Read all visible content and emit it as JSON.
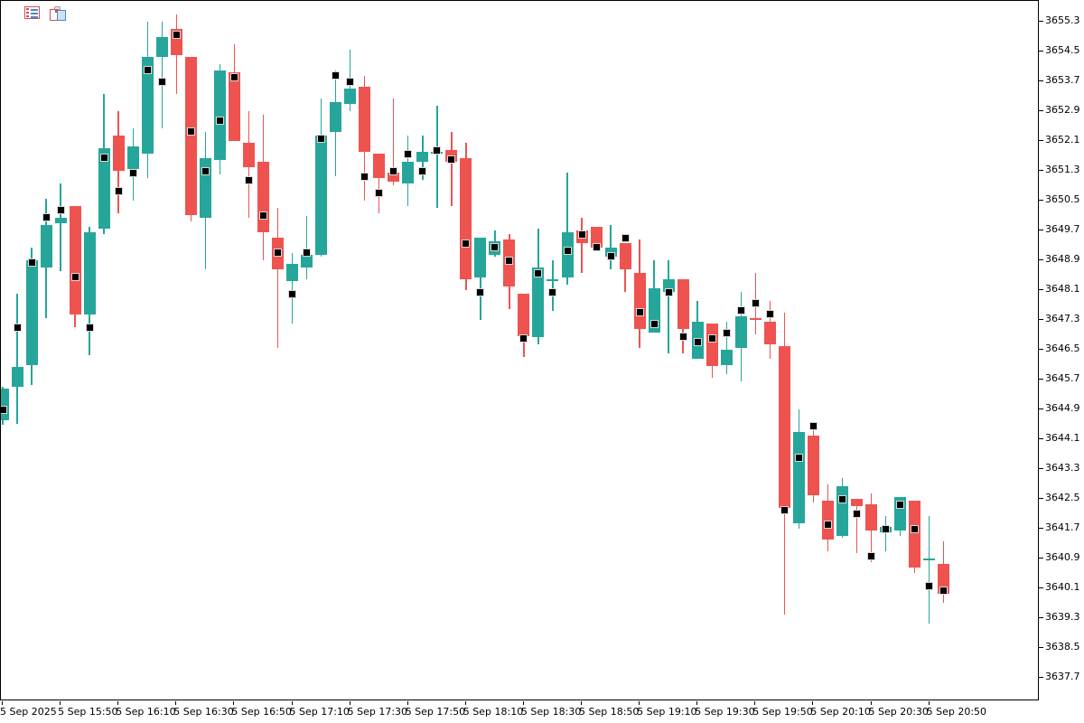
{
  "toolbar": {
    "icons": [
      {
        "name": "list-icon"
      },
      {
        "name": "pages-icon"
      }
    ]
  },
  "chart_data": {
    "type": "candlestick",
    "title": "",
    "colors": {
      "up": "#26a69a",
      "down": "#ef5350",
      "marker": "#000000",
      "axis": "#000000",
      "background": "#ffffff"
    },
    "grid": false,
    "legend": null,
    "y_axis": {
      "side": "right",
      "min": 3637.7,
      "max": 3655.3,
      "step": 0.8,
      "tick_labels": [
        "3655.3",
        "3654.5",
        "3653.7",
        "3652.9",
        "3652.1",
        "3651.3",
        "3650.5",
        "3649.7",
        "3648.9",
        "3648.1",
        "3647.3",
        "3646.5",
        "3645.7",
        "3644.9",
        "3644.1",
        "3643.3",
        "3642.5",
        "3641.7",
        "3640.9",
        "3640.1",
        "3639.3",
        "3638.5",
        "3637.7"
      ]
    },
    "x_axis": {
      "tick_labels": [
        "5 Sep 2025",
        "5 Sep 15:50",
        "5 Sep 16:10",
        "5 Sep 16:30",
        "5 Sep 16:50",
        "5 Sep 17:10",
        "5 Sep 17:30",
        "5 Sep 17:50",
        "5 Sep 18:10",
        "5 Sep 18:30",
        "5 Sep 18:50",
        "5 Sep 19:10",
        "5 Sep 19:30",
        "5 Sep 19:50",
        "5 Sep 20:10",
        "5 Sep 20:30",
        "5 Sep 20:50"
      ],
      "candles_per_tick": 4
    },
    "candles_ohlc_marker": [
      [
        3644.6,
        3645.5,
        3644.5,
        3645.45,
        3644.9
      ],
      [
        3645.5,
        3648.0,
        3644.5,
        3646.05,
        3647.1
      ],
      [
        3646.1,
        3649.25,
        3645.55,
        3648.9,
        3648.85
      ],
      [
        3648.7,
        3650.55,
        3647.35,
        3649.85,
        3650.05
      ],
      [
        3649.9,
        3650.95,
        3648.6,
        3650.05,
        3650.25
      ],
      [
        3650.35,
        3650.35,
        3647.1,
        3647.45,
        3648.45
      ],
      [
        3647.45,
        3649.8,
        3646.35,
        3649.65,
        3647.1
      ],
      [
        3649.75,
        3653.35,
        3649.6,
        3651.9,
        3651.65
      ],
      [
        3652.25,
        3652.9,
        3650.15,
        3651.3,
        3650.75
      ],
      [
        3651.35,
        3652.45,
        3650.5,
        3651.95,
        3651.25
      ],
      [
        3651.75,
        3655.3,
        3651.1,
        3654.35,
        3654.0
      ],
      [
        3654.35,
        3655.3,
        3652.45,
        3654.9,
        3653.7
      ],
      [
        3655.1,
        3655.5,
        3653.35,
        3654.4,
        3654.95
      ],
      [
        3654.35,
        3654.35,
        3649.95,
        3650.1,
        3652.35
      ],
      [
        3650.05,
        3652.35,
        3648.65,
        3651.65,
        3651.3
      ],
      [
        3651.6,
        3654.15,
        3651.2,
        3654.0,
        3652.65
      ],
      [
        3653.95,
        3654.7,
        3652.1,
        3652.1,
        3653.8
      ],
      [
        3652.05,
        3652.9,
        3650.05,
        3651.4,
        3651.05
      ],
      [
        3651.55,
        3652.8,
        3648.9,
        3649.65,
        3650.1
      ],
      [
        3649.5,
        3650.3,
        3646.55,
        3648.65,
        3649.1
      ],
      [
        3648.35,
        3649.1,
        3647.2,
        3648.8,
        3648.0
      ],
      [
        3648.7,
        3650.1,
        3648.4,
        3649.05,
        3649.1
      ],
      [
        3649.05,
        3653.25,
        3649.0,
        3652.25,
        3652.15
      ],
      [
        3652.35,
        3654.0,
        3651.15,
        3653.15,
        3653.85
      ],
      [
        3653.1,
        3654.55,
        3652.9,
        3653.5,
        3653.7
      ],
      [
        3653.55,
        3653.85,
        3650.5,
        3651.8,
        3651.15
      ],
      [
        3651.75,
        3651.75,
        3650.15,
        3651.1,
        3650.7
      ],
      [
        3651.25,
        3653.25,
        3650.9,
        3651.0,
        3651.3
      ],
      [
        3650.95,
        3652.25,
        3650.35,
        3651.55,
        3651.75
      ],
      [
        3651.55,
        3652.25,
        3651.05,
        3651.8,
        3651.3
      ],
      [
        3651.75,
        3653.05,
        3650.3,
        3651.8,
        3651.85
      ],
      [
        3651.85,
        3652.35,
        3650.35,
        3651.55,
        3651.6
      ],
      [
        3651.65,
        3652.05,
        3648.1,
        3648.4,
        3649.35
      ],
      [
        3648.45,
        3649.5,
        3647.3,
        3649.5,
        3648.05
      ],
      [
        3649.05,
        3649.7,
        3649.0,
        3649.4,
        3649.25
      ],
      [
        3649.45,
        3649.6,
        3647.6,
        3648.2,
        3648.9
      ],
      [
        3648.0,
        3648.0,
        3646.3,
        3646.85,
        3646.8
      ],
      [
        3646.85,
        3649.75,
        3646.65,
        3648.7,
        3648.55
      ],
      [
        3648.35,
        3648.9,
        3647.55,
        3648.4,
        3648.05
      ],
      [
        3648.45,
        3651.25,
        3648.25,
        3649.65,
        3649.15
      ],
      [
        3649.7,
        3650.05,
        3648.55,
        3649.35,
        3649.6
      ],
      [
        3649.8,
        3649.8,
        3649.2,
        3649.25,
        3649.25
      ],
      [
        3649.0,
        3649.85,
        3648.65,
        3649.25,
        3649.0
      ],
      [
        3649.35,
        3649.35,
        3648.05,
        3648.65,
        3649.5
      ],
      [
        3648.55,
        3649.45,
        3646.55,
        3647.05,
        3647.5
      ],
      [
        3646.95,
        3648.9,
        3646.95,
        3648.15,
        3647.2
      ],
      [
        3648.05,
        3648.9,
        3646.4,
        3648.4,
        3648.05
      ],
      [
        3648.4,
        3648.4,
        3646.4,
        3647.05,
        3646.85
      ],
      [
        3646.25,
        3647.8,
        3646.25,
        3647.25,
        3646.7
      ],
      [
        3647.2,
        3647.2,
        3645.75,
        3646.05,
        3646.8
      ],
      [
        3646.1,
        3647.25,
        3645.85,
        3646.5,
        3646.95
      ],
      [
        3646.55,
        3648.05,
        3645.65,
        3647.4,
        3647.55
      ],
      [
        3647.35,
        3648.55,
        3646.9,
        3647.3,
        3647.75
      ],
      [
        3647.25,
        3647.8,
        3646.25,
        3646.65,
        3647.45
      ],
      [
        3646.6,
        3647.5,
        3639.4,
        3642.25,
        3642.2
      ],
      [
        3641.85,
        3644.9,
        3641.7,
        3644.3,
        3643.6
      ],
      [
        3644.2,
        3644.5,
        3642.4,
        3642.6,
        3644.45
      ],
      [
        3642.45,
        3642.9,
        3641.1,
        3641.4,
        3641.8
      ],
      [
        3641.5,
        3643.05,
        3641.45,
        3642.85,
        3642.5
      ],
      [
        3642.5,
        3642.5,
        3641.05,
        3642.3,
        3642.1
      ],
      [
        3642.35,
        3642.65,
        3640.8,
        3641.65,
        3640.95
      ],
      [
        3641.6,
        3642.05,
        3641.1,
        3641.75,
        3641.7
      ],
      [
        3641.65,
        3642.55,
        3641.5,
        3642.55,
        3642.35
      ],
      [
        3642.45,
        3642.45,
        3640.5,
        3640.65,
        3641.7
      ],
      [
        3640.85,
        3642.05,
        3639.15,
        3640.9,
        3640.15
      ],
      [
        3640.75,
        3641.35,
        3639.7,
        3639.95,
        3640.05
      ]
    ]
  }
}
